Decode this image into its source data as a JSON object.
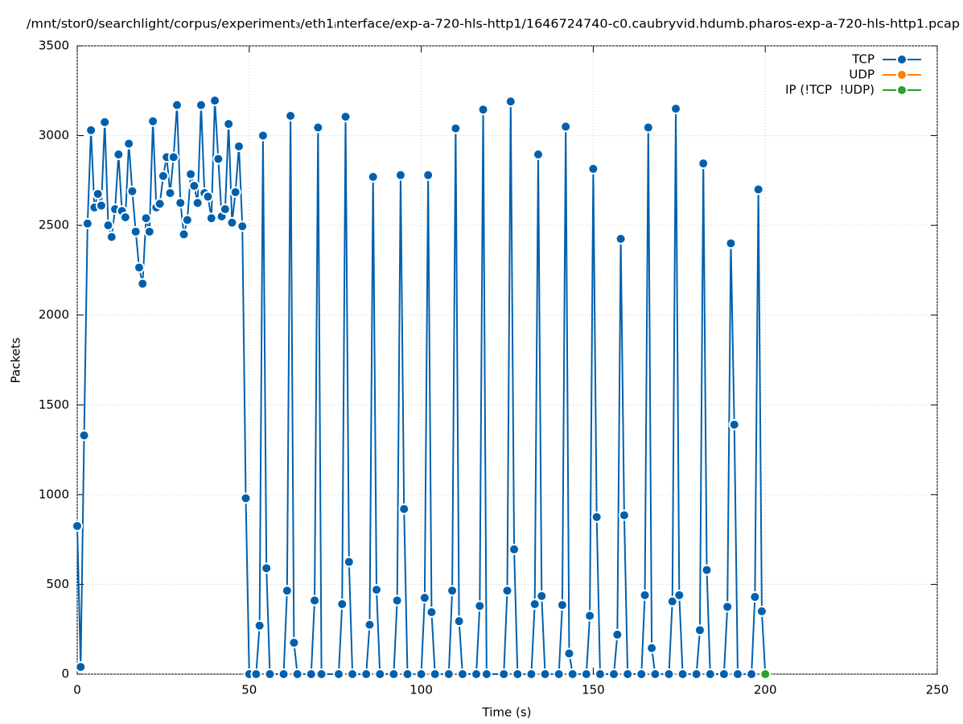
{
  "chart_data": {
    "type": "line",
    "title": "/mnt/stor0/searchlight/corpus/experiment₃/eth1ᵢnterface/exp-a-720-hls-http1/1646724740-c0.caubryvid.hdumb.pharos-exp-a-720-hls-http1.pcap",
    "x_label": "Time (s)",
    "y_label": "Packets",
    "xlim": [
      0,
      250
    ],
    "xticks": [
      0,
      50,
      100,
      150,
      200,
      250
    ],
    "ylim": [
      0,
      3500
    ],
    "yticks": [
      0,
      500,
      1000,
      1500,
      2000,
      2500,
      3000,
      3500
    ],
    "grid": true,
    "legend": "top-right",
    "series": [
      {
        "name": "TCP",
        "color": "#0060ad",
        "x": [
          0,
          1,
          2,
          3,
          4,
          5,
          6,
          7,
          8,
          9,
          10,
          11,
          12,
          13,
          14,
          15,
          16,
          17,
          18,
          19,
          20,
          21,
          22,
          23,
          24,
          25,
          26,
          27,
          28,
          29,
          30,
          31,
          32,
          33,
          34,
          35,
          36,
          37,
          38,
          39,
          40,
          41,
          42,
          43,
          44,
          45,
          46,
          47,
          48,
          49,
          50,
          52,
          53,
          54,
          55,
          56,
          60,
          61,
          62,
          63,
          64,
          68,
          69,
          70,
          71,
          76,
          77,
          78,
          79,
          80,
          84,
          85,
          86,
          87,
          88,
          92,
          93,
          94,
          95,
          96,
          100,
          101,
          102,
          103,
          104,
          108,
          109,
          110,
          111,
          112,
          116,
          117,
          118,
          119,
          124,
          125,
          126,
          127,
          128,
          132,
          133,
          134,
          135,
          136,
          140,
          141,
          142,
          143,
          144,
          148,
          149,
          150,
          151,
          152,
          156,
          157,
          158,
          159,
          160,
          164,
          165,
          166,
          167,
          168,
          172,
          173,
          174,
          175,
          176,
          180,
          181,
          182,
          183,
          184,
          188,
          189,
          190,
          191,
          192,
          196,
          197,
          198,
          199,
          200
        ],
        "values": [
          825,
          40,
          1330,
          2510,
          3030,
          2600,
          2675,
          2610,
          3075,
          2500,
          2435,
          2590,
          2895,
          2580,
          2545,
          2955,
          2690,
          2465,
          2265,
          2175,
          2540,
          2465,
          3080,
          2600,
          2620,
          2775,
          2880,
          2680,
          2880,
          3170,
          2625,
          2450,
          2530,
          2785,
          2720,
          2625,
          3170,
          2680,
          2660,
          2540,
          3195,
          2870,
          2550,
          2590,
          3065,
          2515,
          2685,
          2940,
          2495,
          980,
          0,
          0,
          270,
          3000,
          590,
          0,
          0,
          465,
          3110,
          175,
          0,
          0,
          410,
          3045,
          0,
          0,
          390,
          3105,
          625,
          0,
          0,
          275,
          2770,
          470,
          0,
          0,
          410,
          2780,
          920,
          0,
          0,
          425,
          2780,
          345,
          0,
          0,
          465,
          3040,
          295,
          0,
          0,
          380,
          3145,
          0,
          0,
          465,
          3190,
          695,
          0,
          0,
          390,
          2895,
          435,
          0,
          0,
          385,
          3050,
          115,
          0,
          0,
          325,
          2815,
          875,
          0,
          0,
          220,
          2425,
          885,
          0,
          0,
          440,
          3045,
          145,
          0,
          0,
          405,
          3150,
          440,
          0,
          0,
          245,
          2845,
          580,
          0,
          0,
          375,
          2400,
          1390,
          0,
          0,
          430,
          2700,
          350,
          0
        ]
      },
      {
        "name": "UDP",
        "color": "#ff7f0e",
        "x": [
          200
        ],
        "values": [
          0
        ]
      },
      {
        "name": "IP (!TCP  !UDP)",
        "color": "#2ca02c",
        "x": [
          200
        ],
        "values": [
          0
        ]
      }
    ]
  }
}
